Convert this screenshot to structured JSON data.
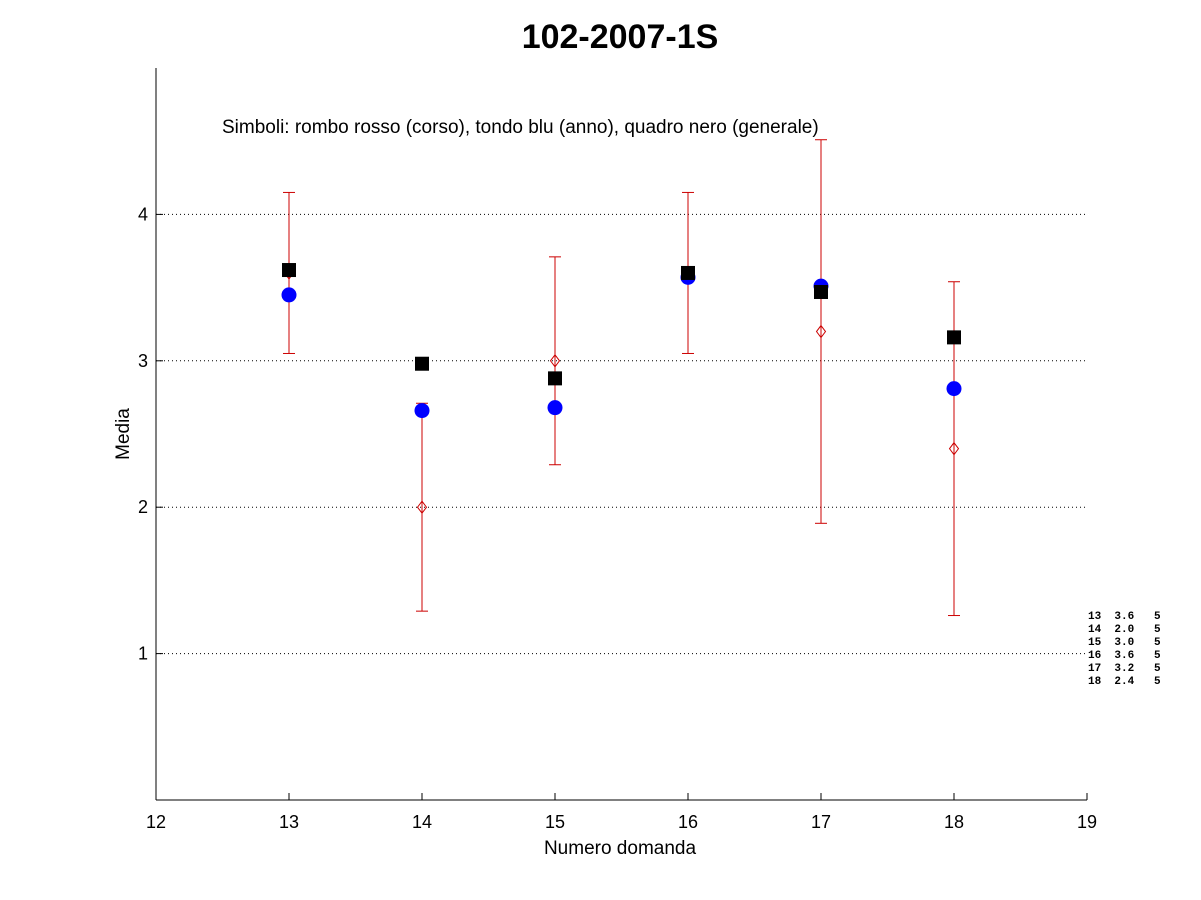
{
  "chart_data": {
    "type": "scatter",
    "title": "102-2007-1S",
    "xlabel": "Numero domanda",
    "ylabel": "Media",
    "xlim": [
      12,
      19
    ],
    "ylim": [
      0,
      5
    ],
    "xticks": [
      12,
      13,
      14,
      15,
      16,
      17,
      18,
      19
    ],
    "yticks": [
      1,
      2,
      3,
      4
    ],
    "grid": "horizontal dotted at y ticks",
    "annotation": "Simboli: rombo rosso (corso), tondo blu (anno), quadro nero (generale)",
    "series": [
      {
        "name": "corso",
        "marker": "diamond-open",
        "color": "#cc0000",
        "x": [
          13,
          14,
          15,
          16,
          17,
          18
        ],
        "y": [
          3.6,
          2.0,
          3.0,
          3.6,
          3.2,
          2.4
        ],
        "error_low": [
          3.05,
          1.29,
          2.29,
          3.05,
          1.89,
          1.26
        ],
        "error_high": [
          4.15,
          2.71,
          3.71,
          4.15,
          4.51,
          3.54
        ]
      },
      {
        "name": "anno",
        "marker": "circle-filled",
        "color": "#0000ff",
        "x": [
          13,
          14,
          15,
          16,
          17,
          18
        ],
        "y": [
          3.45,
          2.66,
          2.68,
          3.57,
          3.51,
          2.81
        ]
      },
      {
        "name": "generale",
        "marker": "square-filled",
        "color": "#000000",
        "x": [
          13,
          14,
          15,
          16,
          17,
          18
        ],
        "y": [
          3.62,
          2.98,
          2.88,
          3.6,
          3.47,
          3.16
        ]
      }
    ],
    "side_table": [
      "13  3.6   5",
      "14  2.0   5",
      "15  3.0   5",
      "16  3.6   5",
      "17  3.2   5",
      "18  2.4   5"
    ]
  }
}
